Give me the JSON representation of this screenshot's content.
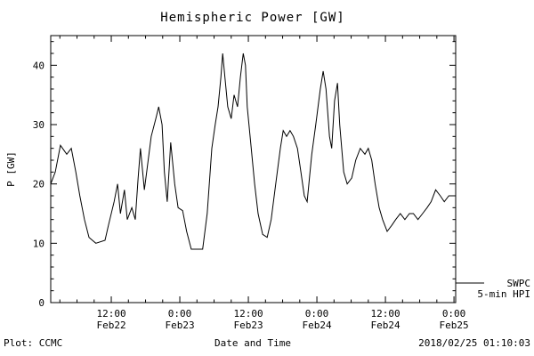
{
  "title": "Hemispheric Power [GW]",
  "axes": {
    "ylabel": "P [GW]",
    "xlabel": "Date and Time",
    "y_ticks": [
      0,
      10,
      20,
      30,
      40
    ],
    "x_ticks": [
      {
        "hours": 12,
        "time": "12:00",
        "date": "Feb22"
      },
      {
        "hours": 24,
        "time": "0:00",
        "date": "Feb23"
      },
      {
        "hours": 36,
        "time": "12:00",
        "date": "Feb23"
      },
      {
        "hours": 48,
        "time": "0:00",
        "date": "Feb24"
      },
      {
        "hours": 60,
        "time": "12:00",
        "date": "Feb24"
      },
      {
        "hours": 72,
        "time": "0:00",
        "date": "Feb25"
      }
    ]
  },
  "legend": {
    "line1": "SWPC",
    "line2": "5-min HPI"
  },
  "footer": {
    "left": "Plot: CCMC",
    "right": "2018/02/25 01:10:03"
  },
  "colors": {
    "line": "#000000",
    "background": "#ffffff"
  },
  "chart_data": {
    "type": "line",
    "title": "Hemispheric Power [GW]",
    "xlabel": "Date and Time",
    "ylabel": "P [GW]",
    "series_name": "SWPC 5-min HPI",
    "x_unit": "hours since 2018-02-22 00:00 UT",
    "xlim": [
      1.4,
      72.3
    ],
    "ylim": [
      0,
      45
    ],
    "grid": false,
    "legend_position": "right-outside-bottom",
    "x": [
      1.4,
      2.2,
      3.1,
      4.2,
      5.0,
      5.8,
      6.5,
      7.3,
      8.1,
      9.3,
      10.9,
      11.5,
      12.5,
      13.1,
      13.6,
      14.3,
      14.8,
      15.6,
      16.2,
      16.7,
      17.1,
      17.8,
      18.2,
      19.0,
      19.8,
      20.3,
      20.9,
      21.3,
      21.8,
      22.4,
      23.1,
      23.7,
      24.5,
      25.2,
      26.0,
      28.0,
      28.8,
      29.6,
      30.2,
      30.7,
      31.2,
      31.5,
      31.9,
      32.4,
      33.0,
      33.5,
      34.1,
      34.6,
      35.1,
      35.5,
      35.8,
      36.5,
      37.1,
      37.7,
      38.5,
      39.3,
      40.0,
      40.8,
      41.6,
      42.1,
      42.7,
      43.3,
      43.9,
      44.6,
      45.2,
      45.8,
      46.3,
      47.1,
      47.8,
      48.6,
      49.1,
      49.6,
      50.2,
      50.6,
      51.1,
      51.6,
      52.0,
      52.7,
      53.3,
      54.1,
      54.8,
      55.6,
      56.4,
      57.0,
      57.6,
      58.2,
      58.9,
      59.5,
      60.3,
      61.1,
      61.8,
      62.6,
      63.4,
      64.2,
      64.9,
      65.7,
      66.5,
      67.3,
      68.0,
      68.8,
      69.6,
      70.3,
      71.1,
      71.9
    ],
    "values": [
      20,
      22,
      26.5,
      25,
      26,
      22,
      18,
      14,
      11,
      10,
      10.5,
      13,
      17,
      20,
      15,
      19,
      14,
      16,
      14,
      21,
      26,
      19,
      22,
      28,
      31,
      33,
      30,
      22,
      17,
      27,
      20,
      16,
      15.5,
      12,
      9,
      9,
      15,
      26,
      30,
      33,
      38,
      42,
      38,
      33,
      31,
      35,
      33,
      38,
      42,
      40,
      33,
      26,
      20,
      15,
      11.5,
      11,
      14,
      20,
      26,
      29,
      28,
      29,
      28,
      26,
      22,
      18,
      17,
      25,
      30,
      36,
      39,
      36,
      28,
      26,
      34,
      37,
      30,
      22,
      20,
      21,
      24,
      26,
      25,
      26,
      24,
      20,
      16,
      14,
      12,
      13,
      14,
      15,
      14,
      15,
      15,
      14,
      15,
      16,
      17,
      19,
      18,
      17,
      18,
      18
    ]
  }
}
